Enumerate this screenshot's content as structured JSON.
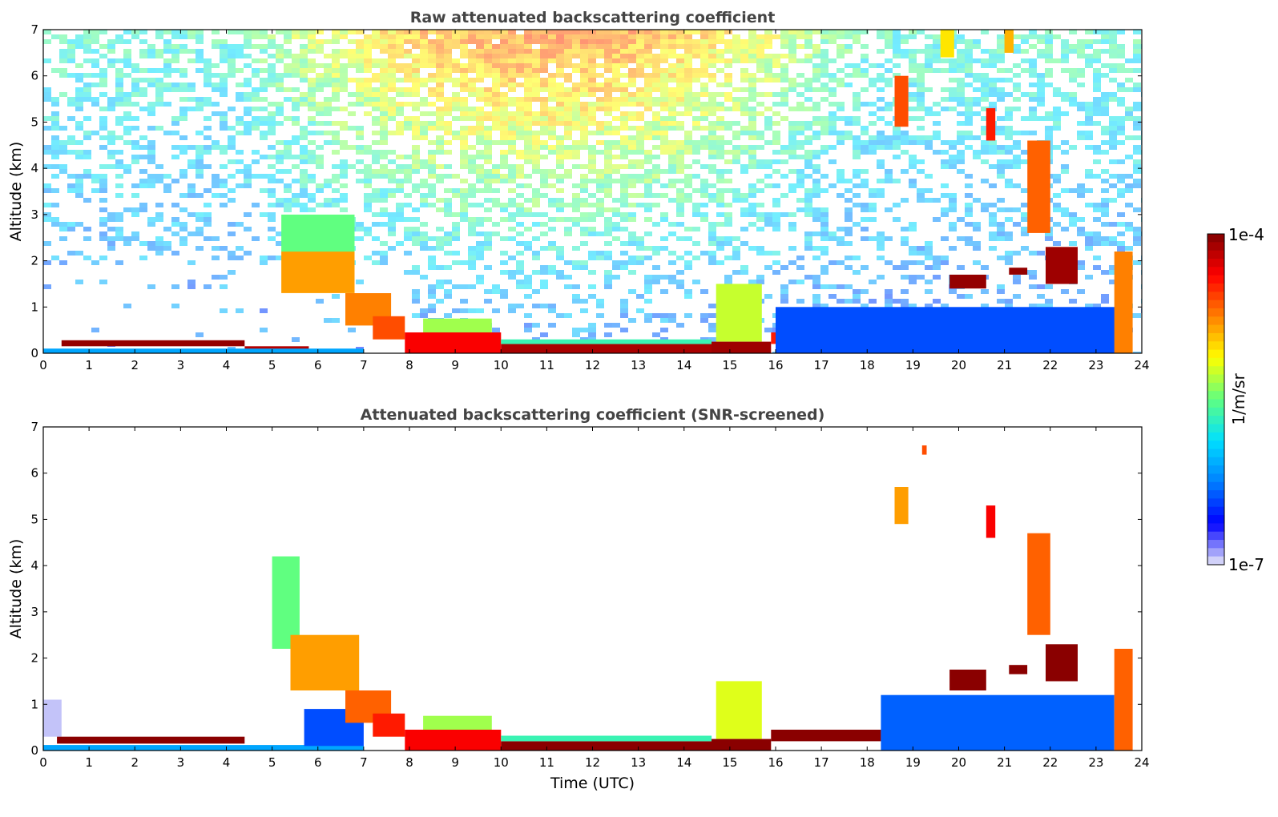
{
  "chart_data": [
    {
      "type": "heatmap",
      "title": "Raw attenuated backscattering coefficient",
      "xlabel": "",
      "ylabel": "Altitude (km)",
      "xlim": [
        0,
        24
      ],
      "ylim": [
        0,
        7
      ],
      "xticks": [
        "0",
        "1",
        "2",
        "3",
        "4",
        "5",
        "6",
        "7",
        "8",
        "9",
        "10",
        "11",
        "12",
        "13",
        "14",
        "15",
        "16",
        "17",
        "18",
        "19",
        "20",
        "21",
        "22",
        "23",
        "24"
      ],
      "yticks": [
        "0",
        "1",
        "2",
        "3",
        "4",
        "5",
        "6",
        "7"
      ],
      "noise": true,
      "features": [
        {
          "kind": "layer",
          "t0": 0.4,
          "t1": 4.4,
          "h0": 0.15,
          "h1": 0.28,
          "level": 0.98
        },
        {
          "kind": "layer",
          "t0": 4.4,
          "t1": 5.8,
          "h0": 0.07,
          "h1": 0.15,
          "level": 0.95
        },
        {
          "kind": "layer",
          "t0": 0.0,
          "t1": 7.0,
          "h0": 0.0,
          "h1": 0.1,
          "level": 0.3
        },
        {
          "kind": "layer",
          "t0": 5.2,
          "t1": 6.8,
          "h0": 1.3,
          "h1": 2.2,
          "level": 0.72
        },
        {
          "kind": "layer",
          "t0": 5.2,
          "t1": 6.8,
          "h0": 2.2,
          "h1": 3.0,
          "level": 0.5
        },
        {
          "kind": "layer",
          "t0": 6.6,
          "t1": 7.6,
          "h0": 0.6,
          "h1": 1.3,
          "level": 0.75
        },
        {
          "kind": "layer",
          "t0": 7.2,
          "t1": 7.9,
          "h0": 0.3,
          "h1": 0.8,
          "level": 0.8
        },
        {
          "kind": "layer",
          "t0": 7.9,
          "t1": 10.0,
          "h0": 0.0,
          "h1": 0.45,
          "level": 0.88
        },
        {
          "kind": "layer",
          "t0": 8.3,
          "t1": 9.8,
          "h0": 0.45,
          "h1": 0.75,
          "level": 0.55
        },
        {
          "kind": "layer",
          "t0": 10.0,
          "t1": 14.6,
          "h0": 0.0,
          "h1": 0.2,
          "level": 0.96
        },
        {
          "kind": "layer",
          "t0": 10.0,
          "t1": 14.6,
          "h0": 0.2,
          "h1": 0.3,
          "level": 0.45
        },
        {
          "kind": "layer",
          "t0": 14.6,
          "t1": 15.9,
          "h0": 0.0,
          "h1": 0.25,
          "level": 0.97
        },
        {
          "kind": "layer",
          "t0": 14.7,
          "t1": 15.7,
          "h0": 0.25,
          "h1": 1.5,
          "level": 0.58
        },
        {
          "kind": "layer",
          "t0": 15.9,
          "t1": 18.3,
          "h0": 0.2,
          "h1": 0.45,
          "level": 0.85
        },
        {
          "kind": "layer",
          "t0": 16.0,
          "t1": 23.7,
          "h0": 0.0,
          "h1": 1.0,
          "level": 0.2
        },
        {
          "kind": "layer",
          "t0": 18.6,
          "t1": 18.9,
          "h0": 4.9,
          "h1": 6.0,
          "level": 0.8
        },
        {
          "kind": "layer",
          "t0": 19.6,
          "t1": 19.9,
          "h0": 6.4,
          "h1": 7.0,
          "level": 0.65
        },
        {
          "kind": "layer",
          "t0": 20.6,
          "t1": 20.8,
          "h0": 4.6,
          "h1": 5.3,
          "level": 0.85
        },
        {
          "kind": "layer",
          "t0": 21.0,
          "t1": 21.2,
          "h0": 6.5,
          "h1": 7.0,
          "level": 0.7
        },
        {
          "kind": "layer",
          "t0": 21.5,
          "t1": 22.0,
          "h0": 2.6,
          "h1": 4.6,
          "level": 0.78
        },
        {
          "kind": "layer",
          "t0": 19.8,
          "t1": 20.6,
          "h0": 1.4,
          "h1": 1.7,
          "level": 0.98
        },
        {
          "kind": "layer",
          "t0": 21.1,
          "t1": 21.5,
          "h0": 1.7,
          "h1": 1.85,
          "level": 0.98
        },
        {
          "kind": "layer",
          "t0": 21.9,
          "t1": 22.6,
          "h0": 1.5,
          "h1": 2.3,
          "level": 0.97
        },
        {
          "kind": "layer",
          "t0": 23.4,
          "t1": 23.8,
          "h0": 0.0,
          "h1": 2.2,
          "level": 0.75
        }
      ],
      "colorbar": {
        "min_label": "1e-7",
        "max_label": "1e-4",
        "label": "1/m/sr",
        "colors": [
          "#e8e8f8",
          "#0000ff",
          "#0080ff",
          "#00e0ff",
          "#60ff80",
          "#ffff00",
          "#ff8000",
          "#ff0000",
          "#800000"
        ]
      }
    },
    {
      "type": "heatmap",
      "title": "Attenuated backscattering coefficient (SNR-screened)",
      "xlabel": "Time (UTC)",
      "ylabel": "Altitude (km)",
      "xlim": [
        0,
        24
      ],
      "ylim": [
        0,
        7
      ],
      "xticks": [
        "0",
        "1",
        "2",
        "3",
        "4",
        "5",
        "6",
        "7",
        "8",
        "9",
        "10",
        "11",
        "12",
        "13",
        "14",
        "15",
        "16",
        "17",
        "18",
        "19",
        "20",
        "21",
        "22",
        "23",
        "24"
      ],
      "yticks": [
        "0",
        "1",
        "2",
        "3",
        "4",
        "5",
        "6",
        "7"
      ],
      "noise": false,
      "features": [
        {
          "kind": "layer",
          "t0": 0.0,
          "t1": 0.4,
          "h0": 0.3,
          "h1": 1.1,
          "level": 0.02
        },
        {
          "kind": "layer",
          "t0": 0.3,
          "t1": 4.4,
          "h0": 0.15,
          "h1": 0.3,
          "level": 0.99
        },
        {
          "kind": "layer",
          "t0": 0.0,
          "t1": 7.0,
          "h0": 0.0,
          "h1": 0.12,
          "level": 0.3
        },
        {
          "kind": "layer",
          "t0": 5.7,
          "t1": 7.0,
          "h0": 0.1,
          "h1": 0.9,
          "level": 0.2
        },
        {
          "kind": "layer",
          "t0": 5.0,
          "t1": 5.6,
          "h0": 2.2,
          "h1": 4.2,
          "level": 0.5
        },
        {
          "kind": "layer",
          "t0": 5.4,
          "t1": 6.9,
          "h0": 1.3,
          "h1": 2.5,
          "level": 0.72
        },
        {
          "kind": "layer",
          "t0": 6.6,
          "t1": 7.6,
          "h0": 0.6,
          "h1": 1.3,
          "level": 0.78
        },
        {
          "kind": "layer",
          "t0": 7.2,
          "t1": 7.9,
          "h0": 0.3,
          "h1": 0.8,
          "level": 0.85
        },
        {
          "kind": "layer",
          "t0": 7.9,
          "t1": 10.0,
          "h0": 0.0,
          "h1": 0.45,
          "level": 0.88
        },
        {
          "kind": "layer",
          "t0": 8.3,
          "t1": 9.8,
          "h0": 0.45,
          "h1": 0.75,
          "level": 0.55
        },
        {
          "kind": "layer",
          "t0": 10.0,
          "t1": 14.6,
          "h0": 0.0,
          "h1": 0.2,
          "level": 0.99
        },
        {
          "kind": "layer",
          "t0": 10.0,
          "t1": 14.6,
          "h0": 0.2,
          "h1": 0.32,
          "level": 0.45
        },
        {
          "kind": "layer",
          "t0": 14.6,
          "t1": 15.9,
          "h0": 0.0,
          "h1": 0.25,
          "level": 0.99
        },
        {
          "kind": "layer",
          "t0": 14.7,
          "t1": 15.7,
          "h0": 0.25,
          "h1": 1.5,
          "level": 0.6
        },
        {
          "kind": "layer",
          "t0": 15.9,
          "t1": 18.3,
          "h0": 0.2,
          "h1": 0.45,
          "level": 0.99
        },
        {
          "kind": "layer",
          "t0": 18.3,
          "t1": 23.4,
          "h0": 0.0,
          "h1": 1.2,
          "level": 0.22
        },
        {
          "kind": "layer",
          "t0": 18.6,
          "t1": 18.9,
          "h0": 4.9,
          "h1": 5.7,
          "level": 0.72
        },
        {
          "kind": "layer",
          "t0": 19.2,
          "t1": 19.3,
          "h0": 6.4,
          "h1": 6.6,
          "level": 0.8
        },
        {
          "kind": "layer",
          "t0": 20.6,
          "t1": 20.8,
          "h0": 4.6,
          "h1": 5.3,
          "level": 0.88
        },
        {
          "kind": "layer",
          "t0": 21.5,
          "t1": 22.0,
          "h0": 2.5,
          "h1": 4.7,
          "level": 0.78
        },
        {
          "kind": "layer",
          "t0": 19.8,
          "t1": 20.6,
          "h0": 1.3,
          "h1": 1.75,
          "level": 0.99
        },
        {
          "kind": "layer",
          "t0": 21.1,
          "t1": 21.5,
          "h0": 1.65,
          "h1": 1.85,
          "level": 0.99
        },
        {
          "kind": "layer",
          "t0": 21.9,
          "t1": 22.6,
          "h0": 1.5,
          "h1": 2.3,
          "level": 0.99
        },
        {
          "kind": "layer",
          "t0": 23.4,
          "t1": 23.8,
          "h0": 0.0,
          "h1": 2.2,
          "level": 0.78
        }
      ]
    }
  ]
}
